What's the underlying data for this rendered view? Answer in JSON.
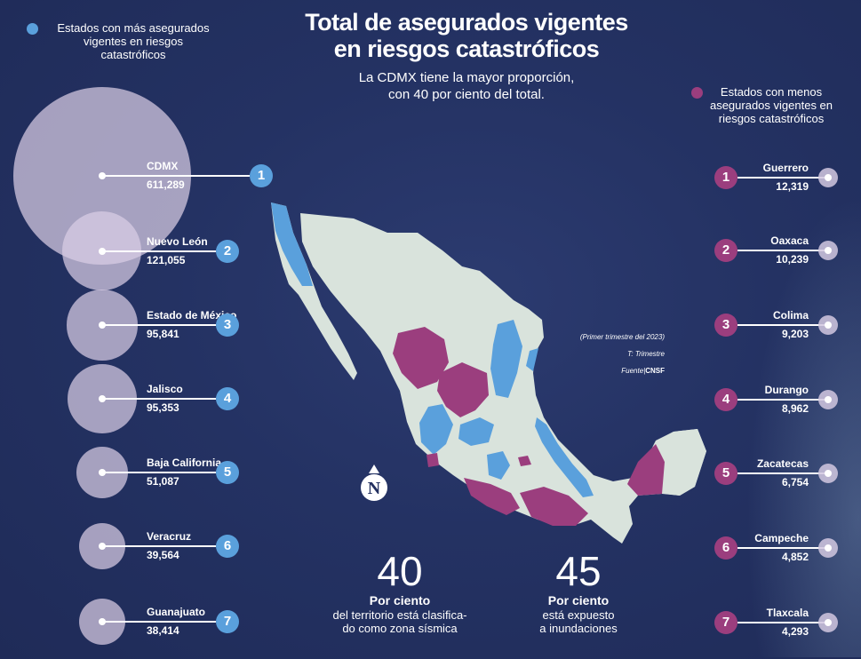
{
  "title_line1": "Total de asegurados vigentes",
  "title_line2": "en riesgos catastróficos",
  "subtitle_line1": "La CDMX tiene la mayor proporción,",
  "subtitle_line2": "con 40 por ciento del total.",
  "legend_left": {
    "line1": "Estados con más asegurados",
    "line2": "vigentes en riesgos",
    "line3": "catastróficos",
    "color": "#5aa0dc"
  },
  "legend_right": {
    "line1": "Estados con menos",
    "line2": "asegurados vigentes en",
    "line3": "riesgos catastróficos",
    "color": "#9b3e7e"
  },
  "source": {
    "line1": "(Primer trimestre del 2023)",
    "line2": "T: Trimestre",
    "label": "Fuente|",
    "name": "CNSF"
  },
  "compass_letter": "N",
  "stats": [
    {
      "number": "40",
      "head": "Por ciento",
      "body1": "del territorio está clasifica-",
      "body2": "do como zona sísmica"
    },
    {
      "number": "45",
      "head": "Por ciento",
      "body1": "está expuesto",
      "body2": "a inundaciones"
    }
  ],
  "colors": {
    "background": "#23305f",
    "blue": "#5aa0dc",
    "purple": "#9b3e7e",
    "map_land": "#d9e3dc"
  },
  "chart_data": [
    {
      "type": "bubble",
      "title": "Estados con más asegurados vigentes en riesgos catastróficos",
      "categories": [
        "CDMX",
        "Nuevo León",
        "Estado de México",
        "Jalisco",
        "Baja California",
        "Veracruz",
        "Guanajuato"
      ],
      "values": [
        611289,
        121055,
        95841,
        95353,
        51087,
        39564,
        38414
      ],
      "value_labels": [
        "611,289",
        "121,055",
        "95,841",
        "95,353",
        "51,087",
        "39,564",
        "38,414"
      ],
      "ranks": [
        "1",
        "2",
        "3",
        "4",
        "5",
        "6",
        "7"
      ]
    },
    {
      "type": "bubble",
      "title": "Estados con menos asegurados vigentes en riesgos catastróficos",
      "categories": [
        "Guerrero",
        "Oaxaca",
        "Colima",
        "Durango",
        "Zacatecas",
        "Campeche",
        "Tlaxcala"
      ],
      "values": [
        12319,
        10239,
        9203,
        8962,
        6754,
        4852,
        4293
      ],
      "value_labels": [
        "12,319",
        "10,239",
        "9,203",
        "8,962",
        "6,754",
        "4,852",
        "4,293"
      ],
      "ranks": [
        "1",
        "2",
        "3",
        "4",
        "5",
        "6",
        "7"
      ]
    }
  ]
}
